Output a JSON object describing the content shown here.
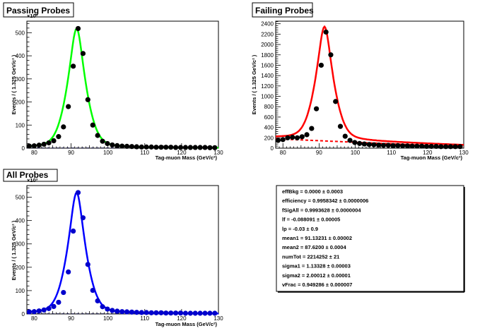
{
  "panels": [
    {
      "id": "passing",
      "title": "Passing Probes",
      "color": "#00ff00",
      "marker_color": "#000000",
      "xlabel": "Tag-muon Mass (GeV/c²)",
      "ylabel": "Events / ( 1.325 GeV/c² )",
      "exponent": "×10³",
      "xlim": [
        78,
        130
      ],
      "ylim": [
        0,
        550
      ],
      "xticks": [
        80,
        90,
        100,
        110,
        120,
        130
      ],
      "yticks": [
        0,
        100,
        200,
        300,
        400,
        500
      ]
    },
    {
      "id": "failing",
      "title": "Failing Probes",
      "color": "#ff0000",
      "marker_color": "#000000",
      "xlabel": "Tag-muon Mass (GeV/c²)",
      "ylabel": "Events / ( 1.325 GeV/c² )",
      "exponent": "",
      "xlim": [
        78,
        130
      ],
      "ylim": [
        0,
        2450
      ],
      "xticks": [
        80,
        90,
        100,
        110,
        120,
        130
      ],
      "yticks": [
        0,
        200,
        400,
        600,
        800,
        1000,
        1200,
        1400,
        1600,
        1800,
        2000,
        2200,
        2400
      ]
    },
    {
      "id": "all",
      "title": "All Probes",
      "color": "#0000ff",
      "marker_color": "#0000cc",
      "xlabel": "Tag-muon Mass (GeV/c²)",
      "ylabel": "Events / ( 1.325 GeV/c² )",
      "exponent": "×10³",
      "xlim": [
        78,
        130
      ],
      "ylim": [
        0,
        550
      ],
      "xticks": [
        80,
        90,
        100,
        110,
        120,
        130
      ],
      "yticks": [
        0,
        100,
        200,
        300,
        400,
        500
      ]
    }
  ],
  "chart_data": [
    {
      "type": "scatter",
      "title": "Passing Probes",
      "xlabel": "Tag-muon Mass (GeV/c²)",
      "ylabel": "Events / ( 1.325 GeV/c² )",
      "ylim": [
        0,
        550
      ],
      "series": [
        {
          "x": [
            78.66,
            79.99,
            81.31,
            82.64,
            83.96,
            85.29,
            86.61,
            87.94,
            89.26,
            90.59,
            91.91,
            93.24,
            94.56,
            95.89,
            97.21,
            98.54,
            99.86,
            101.19,
            102.51,
            103.84,
            105.16,
            106.49,
            107.81,
            109.14,
            110.46,
            111.79,
            113.11,
            114.44,
            115.76,
            117.09,
            118.41,
            119.74,
            121.06,
            122.39,
            123.71,
            125.04,
            126.36,
            127.69,
            129.01
          ],
          "y": [
            9,
            10,
            13,
            17,
            23,
            32,
            50,
            92,
            180,
            355,
            518,
            410,
            210,
            100,
            55,
            30,
            20,
            14,
            11,
            9,
            8,
            7,
            6,
            5,
            5,
            5,
            4,
            4,
            4,
            4,
            3,
            3,
            3,
            3,
            3,
            3,
            3,
            2,
            2
          ]
        }
      ]
    },
    {
      "type": "scatter",
      "title": "Failing Probes",
      "xlabel": "Tag-muon Mass (GeV/c²)",
      "ylabel": "Events / ( 1.325 GeV/c² )",
      "ylim": [
        0,
        2450
      ],
      "series": [
        {
          "x": [
            78.66,
            79.99,
            81.31,
            82.64,
            83.96,
            85.29,
            86.61,
            87.94,
            89.26,
            90.59,
            91.91,
            93.24,
            94.56,
            95.89,
            97.21,
            98.54,
            99.86,
            101.19,
            102.51,
            103.84,
            105.16,
            106.49,
            107.81,
            109.14,
            110.46,
            111.79,
            113.11,
            114.44,
            115.76,
            117.09,
            118.41,
            119.74,
            121.06,
            122.39,
            123.71,
            125.04,
            126.36,
            127.69,
            129.01
          ],
          "y": [
            150,
            165,
            200,
            210,
            200,
            220,
            260,
            380,
            760,
            1600,
            2240,
            1800,
            900,
            420,
            230,
            150,
            110,
            90,
            80,
            70,
            65,
            60,
            55,
            55,
            50,
            50,
            45,
            45,
            40,
            40,
            40,
            35,
            35,
            35,
            30,
            30,
            30,
            30,
            30
          ]
        }
      ]
    },
    {
      "type": "scatter",
      "title": "All Probes",
      "xlabel": "Tag-muon Mass (GeV/c²)",
      "ylabel": "Events / ( 1.325 GeV/c² )",
      "ylim": [
        0,
        550
      ],
      "series": [
        {
          "x": [
            78.66,
            79.99,
            81.31,
            82.64,
            83.96,
            85.29,
            86.61,
            87.94,
            89.26,
            90.59,
            91.91,
            93.24,
            94.56,
            95.89,
            97.21,
            98.54,
            99.86,
            101.19,
            102.51,
            103.84,
            105.16,
            106.49,
            107.81,
            109.14,
            110.46,
            111.79,
            113.11,
            114.44,
            115.76,
            117.09,
            118.41,
            119.74,
            121.06,
            122.39,
            123.71,
            125.04,
            126.36,
            127.69,
            129.01
          ],
          "y": [
            9,
            10,
            13,
            17,
            23,
            32,
            50,
            92,
            180,
            355,
            520,
            412,
            212,
            101,
            56,
            31,
            21,
            15,
            12,
            10,
            9,
            8,
            7,
            6,
            6,
            5,
            5,
            5,
            4,
            4,
            4,
            4,
            3,
            3,
            3,
            3,
            3,
            3,
            3
          ]
        }
      ]
    }
  ],
  "params": [
    {
      "name": "effBkg",
      "value": "0.0000 ± 0.0003"
    },
    {
      "name": "efficiency",
      "value": "0.9958342 ± 0.0000006"
    },
    {
      "name": "fSigAll",
      "value": "0.9993628 ± 0.0000004"
    },
    {
      "name": "lf",
      "value": "-0.088091 ± 0.00005"
    },
    {
      "name": "lp",
      "value": "-0.03 ± 0.9"
    },
    {
      "name": "mean1",
      "value": "91.13231 ± 0.00002"
    },
    {
      "name": "mean2",
      "value": "87.6200 ± 0.0004"
    },
    {
      "name": "numTot",
      "value": "2214252 ± 21"
    },
    {
      "name": "sigma1",
      "value": "1.13328 ± 0.00003"
    },
    {
      "name": "sigma2",
      "value": "2.00012 ± 0.00001"
    },
    {
      "name": "vFrac",
      "value": "0.949286 ± 0.000007"
    }
  ]
}
